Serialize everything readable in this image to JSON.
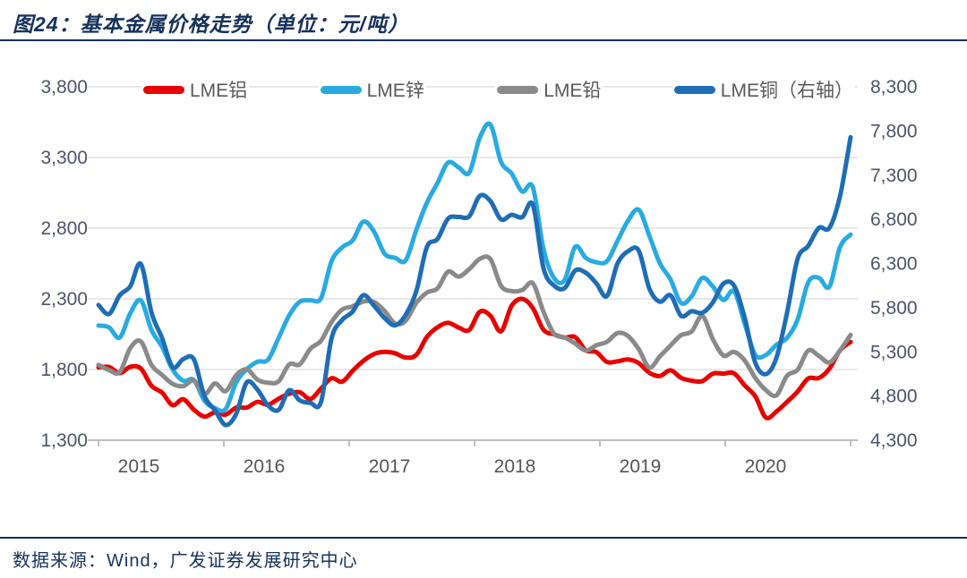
{
  "title": "图24：基本金属价格走势（单位：元/吨）",
  "footer": {
    "source": "数据来源：Wind，广发证券发展研究中心"
  },
  "colors": {
    "navy": "#16325c",
    "grid": "#d9d9d9",
    "axis": "#bfbfbf",
    "tick_label": "#4d5466",
    "legend_text": "#595959"
  },
  "chart_data": {
    "type": "line",
    "title": "基本金属价格走势",
    "unit": "元/吨",
    "legend_position": "top",
    "grid": "horizontal-only",
    "x_start_year": 2015,
    "x_tick_labels": [
      "2015",
      "2016",
      "2017",
      "2018",
      "2019",
      "2020"
    ],
    "left_axis": {
      "min": 1300,
      "max": 3800,
      "step": 500,
      "tick_labels": [
        "3,800",
        "3,300",
        "2,800",
        "2,300",
        "1,800",
        "1,300"
      ]
    },
    "right_axis": {
      "min": 4300,
      "max": 8300,
      "step": 500,
      "tick_labels": [
        "8,300",
        "7,800",
        "7,300",
        "6,800",
        "6,300",
        "5,800",
        "5,300",
        "4,800",
        "4,300"
      ]
    },
    "series": [
      {
        "name": "LME铝",
        "color": "#e80000",
        "axis": "left",
        "values": [
          1815,
          1818,
          1774,
          1819,
          1807,
          1685,
          1637,
          1548,
          1590,
          1516,
          1467,
          1497,
          1481,
          1531,
          1531,
          1571,
          1551,
          1593,
          1629,
          1639,
          1592,
          1665,
          1738,
          1714,
          1791,
          1861,
          1909,
          1925,
          1915,
          1885,
          1903,
          2030,
          2099,
          2131,
          2097,
          2080,
          2209,
          2181,
          2070,
          2251,
          2300,
          2235,
          2082,
          2049,
          2026,
          2029,
          1936,
          1923,
          1854,
          1858,
          1871,
          1845,
          1777,
          1754,
          1794,
          1741,
          1721,
          1718,
          1771,
          1771,
          1773,
          1688,
          1611,
          1460,
          1503,
          1571,
          1644,
          1737,
          1740,
          1806,
          1935,
          1995
        ]
      },
      {
        "name": "LME锌",
        "color": "#29abe2",
        "axis": "left",
        "values": [
          2111,
          2098,
          2026,
          2198,
          2289,
          2080,
          1960,
          1800,
          1720,
          1726,
          1580,
          1527,
          1520,
          1709,
          1802,
          1855,
          1869,
          2023,
          2183,
          2279,
          2290,
          2304,
          2566,
          2664,
          2714,
          2846,
          2777,
          2621,
          2590,
          2572,
          2787,
          2980,
          3119,
          3264,
          3230,
          3193,
          3441,
          3533,
          3269,
          3187,
          3059,
          3089,
          2655,
          2448,
          2433,
          2668,
          2590,
          2559,
          2566,
          2711,
          2854,
          2930,
          2746,
          2551,
          2437,
          2270,
          2319,
          2448,
          2386,
          2292,
          2354,
          2125,
          1904,
          1903,
          1975,
          2024,
          2154,
          2417,
          2449,
          2386,
          2666,
          2755
        ]
      },
      {
        "name": "LME铅",
        "color": "#8a8a8a",
        "axis": "left",
        "values": [
          1832,
          1796,
          1781,
          1951,
          1999,
          1832,
          1762,
          1699,
          1682,
          1722,
          1625,
          1701,
          1647,
          1760,
          1802,
          1729,
          1707,
          1716,
          1836,
          1836,
          1947,
          2003,
          2136,
          2224,
          2247,
          2281,
          2278,
          2215,
          2125,
          2146,
          2270,
          2344,
          2374,
          2492,
          2457,
          2510,
          2583,
          2581,
          2392,
          2355,
          2362,
          2410,
          2210,
          2054,
          2027,
          1984,
          1934,
          1972,
          1996,
          2058,
          2037,
          1944,
          1814,
          1893,
          1970,
          2043,
          2069,
          2178,
          2014,
          1899,
          1925,
          1864,
          1741,
          1654,
          1618,
          1756,
          1798,
          1934,
          1897,
          1850,
          1935,
          2045
        ]
      },
      {
        "name": "LME铜（右轴）",
        "color": "#1f6db5",
        "axis": "right",
        "values": [
          5830,
          5729,
          5940,
          6042,
          6295,
          5745,
          5457,
          5127,
          5217,
          5216,
          4800,
          4639,
          4472,
          4599,
          4954,
          4873,
          4694,
          4642,
          4865,
          4751,
          4722,
          4731,
          5451,
          5660,
          5755,
          5941,
          5824,
          5684,
          5600,
          5720,
          5985,
          6486,
          6577,
          6808,
          6827,
          6834,
          7066,
          7007,
          6799,
          6851,
          6825,
          6966,
          6250,
          6051,
          6020,
          6220,
          6196,
          6075,
          5932,
          6300,
          6439,
          6445,
          6017,
          5868,
          5940,
          5708,
          5759,
          5742,
          5860,
          6072,
          6049,
          5686,
          5178,
          5048,
          5234,
          5742,
          6353,
          6499,
          6703,
          6703,
          7063,
          7730
        ]
      }
    ]
  }
}
